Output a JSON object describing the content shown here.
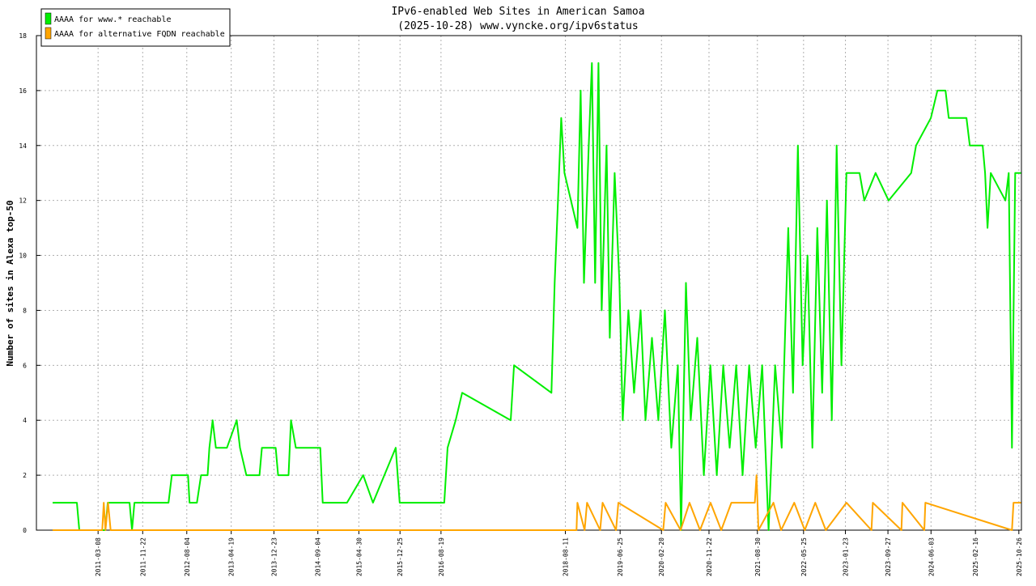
{
  "chart_data": {
    "type": "line",
    "title": "IPv6-enabled Web Sites in American Samoa",
    "subtitle": "(2025-10-28) www.vyncke.org/ipv6status",
    "y_label": "Number of sites in Alexa top-50",
    "xlim": [
      "2010-03-15",
      "2025-11-10"
    ],
    "xticks": [
      "2011-03-08",
      "2011-11-22",
      "2012-08-04",
      "2013-04-19",
      "2013-12-23",
      "2014-09-04",
      "2015-04-30",
      "2015-12-25",
      "2016-08-19",
      "2018-08-11",
      "2019-06-25",
      "2020-02-20",
      "2020-11-22",
      "2021-08-30",
      "2022-05-25",
      "2023-01-23",
      "2023-09-27",
      "2024-06-03",
      "2025-02-16",
      "2025-10-26"
    ],
    "ylim": [
      0,
      18
    ],
    "yticks": [
      0,
      2,
      4,
      6,
      8,
      10,
      12,
      14,
      16,
      18
    ],
    "grid": true,
    "legend": "top-left",
    "series": [
      {
        "name": "AAAA for www.* reachable",
        "color": "#00ee00",
        "x": [
          "2010-06-17",
          "2010-11-05",
          "2010-11-19",
          "2011-04-19",
          "2011-05-03",
          "2011-09-07",
          "2011-09-21",
          "2011-10-05",
          "2012-04-20",
          "2012-05-09",
          "2012-08-11",
          "2012-08-20",
          "2012-10-02",
          "2012-10-26",
          "2012-12-03",
          "2012-12-13",
          "2013-01-01",
          "2013-01-20",
          "2013-03-25",
          "2013-05-21",
          "2013-06-09",
          "2013-07-16",
          "2013-09-30",
          "2013-10-14",
          "2014-01-02",
          "2014-01-16",
          "2014-03-18",
          "2014-04-01",
          "2014-04-29",
          "2014-09-18",
          "2014-10-02",
          "2015-02-20",
          "2015-05-25",
          "2015-07-21",
          "2015-11-30",
          "2015-12-23",
          "2016-09-07",
          "2016-09-26",
          "2016-11-12",
          "2016-12-20",
          "2017-09-28",
          "2017-10-17",
          "2018-05-22",
          "2018-06-10",
          "2018-06-29",
          "2018-07-18",
          "2018-08-06",
          "2018-10-20",
          "2018-11-08",
          "2018-11-27",
          "2018-12-25",
          "2019-01-12",
          "2019-01-31",
          "2019-02-19",
          "2019-03-10",
          "2019-04-07",
          "2019-04-26",
          "2019-05-24",
          "2019-06-21",
          "2019-07-10",
          "2019-08-12",
          "2019-09-14",
          "2019-10-22",
          "2019-11-19",
          "2019-12-27",
          "2020-02-02",
          "2020-03-11",
          "2020-04-17",
          "2020-05-25",
          "2020-06-13",
          "2020-07-11",
          "2020-08-08",
          "2020-09-15",
          "2020-10-23",
          "2020-11-30",
          "2021-01-06",
          "2021-02-13",
          "2021-03-22",
          "2021-04-29",
          "2021-06-05",
          "2021-07-13",
          "2021-08-20",
          "2021-09-27",
          "2021-11-03",
          "2021-12-11",
          "2022-01-18",
          "2022-02-25",
          "2022-03-25",
          "2022-04-22",
          "2022-05-20",
          "2022-06-17",
          "2022-07-15",
          "2022-08-13",
          "2022-09-10",
          "2022-10-08",
          "2022-11-05",
          "2022-12-03",
          "2022-12-31",
          "2023-01-29",
          "2023-04-15",
          "2023-05-13",
          "2023-07-17",
          "2023-10-01",
          "2024-02-09",
          "2024-03-08",
          "2024-06-02",
          "2024-07-10",
          "2024-08-26",
          "2024-09-14",
          "2024-12-26",
          "2025-01-14",
          "2025-03-30",
          "2025-04-13",
          "2025-04-27",
          "2025-05-16",
          "2025-08-09",
          "2025-08-28",
          "2025-09-16",
          "2025-10-05",
          "2025-11-07"
        ],
        "values": [
          1,
          1,
          0,
          0,
          1,
          1,
          0,
          1,
          1,
          2,
          2,
          1,
          1,
          2,
          2,
          3,
          4,
          3,
          3,
          4,
          3,
          2,
          2,
          3,
          3,
          2,
          2,
          4,
          3,
          3,
          1,
          1,
          2,
          1,
          3,
          1,
          1,
          3,
          4,
          5,
          4,
          6,
          5,
          9,
          12,
          15,
          13,
          11,
          16,
          9,
          14,
          17,
          9,
          17,
          8,
          14,
          7,
          13,
          9,
          4,
          8,
          5,
          8,
          4,
          7,
          4,
          8,
          3,
          6,
          0,
          9,
          4,
          7,
          2,
          6,
          2,
          6,
          3,
          6,
          2,
          6,
          3,
          6,
          0,
          6,
          3,
          11,
          5,
          14,
          6,
          10,
          3,
          11,
          5,
          12,
          4,
          14,
          6,
          13,
          13,
          12,
          13,
          12,
          13,
          14,
          15,
          16,
          16,
          15,
          15,
          14,
          14,
          13,
          11,
          13,
          12,
          13,
          3,
          13,
          13
        ]
      },
      {
        "name": "AAAA for alternative FQDN reachable",
        "color": "#ffa500",
        "x": [
          "2010-06-17",
          "2011-04-01",
          "2011-04-10",
          "2011-04-20",
          "2011-05-05",
          "2011-05-20",
          "2018-10-15",
          "2018-10-20",
          "2018-12-01",
          "2018-12-15",
          "2019-03-01",
          "2019-03-15",
          "2019-06-01",
          "2019-06-15",
          "2020-03-01",
          "2020-03-15",
          "2020-06-10",
          "2020-08-01",
          "2020-10-01",
          "2020-12-01",
          "2021-02-01",
          "2021-04-01",
          "2021-08-15",
          "2021-08-25",
          "2021-09-05",
          "2021-12-01",
          "2022-01-15",
          "2022-04-01",
          "2022-06-01",
          "2022-08-01",
          "2022-10-01",
          "2023-01-29",
          "2023-06-23",
          "2023-07-01",
          "2023-12-14",
          "2023-12-20",
          "2024-04-25",
          "2024-05-01",
          "2025-09-16",
          "2025-09-25",
          "2025-11-07"
        ],
        "values": [
          0,
          0,
          1,
          0,
          1,
          0,
          0,
          1,
          0,
          1,
          0,
          1,
          0,
          1,
          0,
          1,
          0,
          1,
          0,
          1,
          0,
          1,
          1,
          2,
          0,
          1,
          0,
          1,
          0,
          1,
          0,
          1,
          0,
          1,
          0,
          1,
          0,
          1,
          0,
          1,
          1
        ]
      }
    ]
  }
}
